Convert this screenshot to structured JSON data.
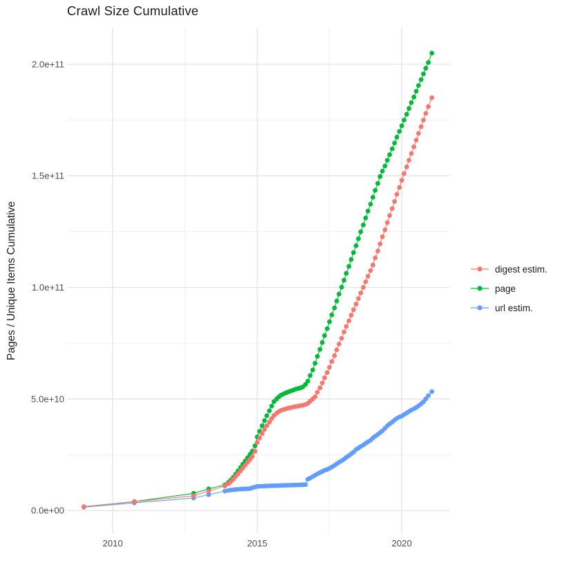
{
  "title": "Crawl Size Cumulative",
  "axes": {
    "y_title": "Pages / Unique Items Cumulative",
    "x_ticks": [
      {
        "label": "2010",
        "year": 2010
      },
      {
        "label": "2015",
        "year": 2015
      },
      {
        "label": "2020",
        "year": 2020
      }
    ],
    "x_minor": [
      2012.5,
      2017.5
    ],
    "y_ticks": [
      {
        "label": "0.0e+00",
        "value": 0
      },
      {
        "label": "5.0e+10",
        "value": 50
      },
      {
        "label": "1.0e+11",
        "value": 100
      },
      {
        "label": "1.5e+11",
        "value": 150
      },
      {
        "label": "2.0e+11",
        "value": 200
      }
    ],
    "y_minor": [
      25,
      75,
      125,
      175
    ]
  },
  "legend": {
    "items": [
      {
        "label": "digest estim.",
        "color": "#F8766D"
      },
      {
        "label": "page",
        "color": "#00BA38"
      },
      {
        "label": "url estim.",
        "color": "#619CFF"
      }
    ]
  },
  "chart_data": {
    "type": "scatter",
    "title": "Crawl Size Cumulative",
    "xlabel": "",
    "ylabel": "Pages / Unique Items Cumulative",
    "value_unit": "1e9 (billions); axis shows scientific notation",
    "xlim": [
      2008.4,
      2021.7
    ],
    "ylim_billions": [
      -10,
      216
    ],
    "grid": true,
    "legend_position": "right",
    "series": [
      {
        "name": "url estim.",
        "color": "#619CFF",
        "points": [
          [
            2009.0,
            1.5
          ],
          [
            2010.75,
            3.4
          ],
          [
            2012.8,
            5.6
          ],
          [
            2013.32,
            7.1
          ],
          [
            2013.88,
            8.7
          ],
          [
            2014.0,
            9.0
          ],
          [
            2014.08,
            9.2
          ],
          [
            2014.17,
            9.3
          ],
          [
            2014.25,
            9.4
          ],
          [
            2014.33,
            9.5
          ],
          [
            2014.42,
            9.6
          ],
          [
            2014.5,
            9.65
          ],
          [
            2014.58,
            9.7
          ],
          [
            2014.67,
            9.75
          ],
          [
            2014.75,
            9.8
          ],
          [
            2014.83,
            10.2
          ],
          [
            2014.92,
            10.5
          ],
          [
            2015.0,
            10.8
          ],
          [
            2015.08,
            10.85
          ],
          [
            2015.17,
            10.9
          ],
          [
            2015.25,
            10.95
          ],
          [
            2015.33,
            11.0
          ],
          [
            2015.42,
            11.05
          ],
          [
            2015.5,
            11.1
          ],
          [
            2015.58,
            11.13
          ],
          [
            2015.67,
            11.16
          ],
          [
            2015.75,
            11.2
          ],
          [
            2015.83,
            11.23
          ],
          [
            2015.92,
            11.26
          ],
          [
            2016.0,
            11.3
          ],
          [
            2016.08,
            11.33
          ],
          [
            2016.17,
            11.36
          ],
          [
            2016.25,
            11.4
          ],
          [
            2016.33,
            11.43
          ],
          [
            2016.42,
            11.46
          ],
          [
            2016.5,
            11.5
          ],
          [
            2016.58,
            11.55
          ],
          [
            2016.67,
            11.6
          ],
          [
            2016.75,
            14.0
          ],
          [
            2016.83,
            14.5
          ],
          [
            2016.92,
            15.2
          ],
          [
            2017.0,
            15.8
          ],
          [
            2017.08,
            16.4
          ],
          [
            2017.17,
            17.0
          ],
          [
            2017.25,
            17.5
          ],
          [
            2017.33,
            18.0
          ],
          [
            2017.42,
            18.4
          ],
          [
            2017.5,
            18.9
          ],
          [
            2017.58,
            19.5
          ],
          [
            2017.67,
            20.2
          ],
          [
            2017.75,
            20.9
          ],
          [
            2017.83,
            21.6
          ],
          [
            2017.92,
            22.3
          ],
          [
            2018.0,
            23.0
          ],
          [
            2018.08,
            23.8
          ],
          [
            2018.17,
            24.6
          ],
          [
            2018.25,
            25.4
          ],
          [
            2018.33,
            26.2
          ],
          [
            2018.42,
            27.3
          ],
          [
            2018.5,
            28.0
          ],
          [
            2018.58,
            28.7
          ],
          [
            2018.67,
            29.4
          ],
          [
            2018.75,
            30.1
          ],
          [
            2018.83,
            30.8
          ],
          [
            2018.92,
            31.5
          ],
          [
            2019.0,
            32.5
          ],
          [
            2019.08,
            33.3
          ],
          [
            2019.17,
            34.1
          ],
          [
            2019.25,
            34.9
          ],
          [
            2019.33,
            35.7
          ],
          [
            2019.42,
            36.9
          ],
          [
            2019.5,
            38.0
          ],
          [
            2019.58,
            38.8
          ],
          [
            2019.67,
            39.6
          ],
          [
            2019.75,
            40.5
          ],
          [
            2019.83,
            41.3
          ],
          [
            2019.92,
            41.9
          ],
          [
            2020.0,
            42.3
          ],
          [
            2020.08,
            43.0
          ],
          [
            2020.17,
            43.7
          ],
          [
            2020.25,
            44.4
          ],
          [
            2020.33,
            45.0
          ],
          [
            2020.42,
            45.6
          ],
          [
            2020.5,
            46.2
          ],
          [
            2020.58,
            46.9
          ],
          [
            2020.67,
            47.8
          ],
          [
            2020.75,
            48.7
          ],
          [
            2020.83,
            50.0
          ],
          [
            2020.92,
            51.5
          ],
          [
            2021.04,
            53.3
          ]
        ]
      },
      {
        "name": "page",
        "color": "#00BA38",
        "points": [
          [
            2009.0,
            1.7
          ],
          [
            2010.75,
            4.0
          ],
          [
            2012.8,
            7.7
          ],
          [
            2013.32,
            9.7
          ],
          [
            2013.88,
            11.5
          ],
          [
            2014.0,
            12.6
          ],
          [
            2014.08,
            13.6
          ],
          [
            2014.17,
            14.9
          ],
          [
            2014.25,
            16.3
          ],
          [
            2014.33,
            17.7
          ],
          [
            2014.42,
            19.2
          ],
          [
            2014.5,
            20.7
          ],
          [
            2014.58,
            22.2
          ],
          [
            2014.67,
            23.7
          ],
          [
            2014.75,
            25.2
          ],
          [
            2014.83,
            26.6
          ],
          [
            2014.92,
            29.0
          ],
          [
            2015.0,
            33.0
          ],
          [
            2015.08,
            35.5
          ],
          [
            2015.17,
            38.0
          ],
          [
            2015.25,
            40.3
          ],
          [
            2015.33,
            42.5
          ],
          [
            2015.42,
            44.7
          ],
          [
            2015.5,
            46.8
          ],
          [
            2015.58,
            48.8
          ],
          [
            2015.67,
            50.0
          ],
          [
            2015.75,
            51.0
          ],
          [
            2015.83,
            51.8
          ],
          [
            2015.92,
            52.3
          ],
          [
            2016.0,
            52.8
          ],
          [
            2016.08,
            53.2
          ],
          [
            2016.17,
            53.6
          ],
          [
            2016.25,
            54.0
          ],
          [
            2016.33,
            54.4
          ],
          [
            2016.42,
            54.7
          ],
          [
            2016.5,
            55.0
          ],
          [
            2016.58,
            55.4
          ],
          [
            2016.67,
            56.5
          ],
          [
            2016.75,
            58.0
          ],
          [
            2016.83,
            60.5
          ],
          [
            2016.92,
            63.0
          ],
          [
            2017.0,
            66.0
          ],
          [
            2017.08,
            69.1
          ],
          [
            2017.17,
            72.2
          ],
          [
            2017.25,
            75.3
          ],
          [
            2017.33,
            78.4
          ],
          [
            2017.42,
            81.5
          ],
          [
            2017.5,
            84.6
          ],
          [
            2017.58,
            87.7
          ],
          [
            2017.67,
            90.8
          ],
          [
            2017.75,
            93.9
          ],
          [
            2017.83,
            97.0
          ],
          [
            2017.92,
            100.1
          ],
          [
            2018.0,
            103.2
          ],
          [
            2018.08,
            106.3
          ],
          [
            2018.17,
            109.4
          ],
          [
            2018.25,
            112.5
          ],
          [
            2018.33,
            115.6
          ],
          [
            2018.42,
            118.7
          ],
          [
            2018.5,
            121.8
          ],
          [
            2018.58,
            124.9
          ],
          [
            2018.67,
            128.0
          ],
          [
            2018.75,
            131.1
          ],
          [
            2018.83,
            134.2
          ],
          [
            2018.92,
            137.3
          ],
          [
            2019.0,
            140.4
          ],
          [
            2019.08,
            143.5
          ],
          [
            2019.17,
            146.6
          ],
          [
            2019.25,
            149.7
          ],
          [
            2019.33,
            152.1
          ],
          [
            2019.42,
            154.4
          ],
          [
            2019.5,
            157.0
          ],
          [
            2019.58,
            159.5
          ],
          [
            2019.67,
            162.1
          ],
          [
            2019.75,
            164.7
          ],
          [
            2019.83,
            167.3
          ],
          [
            2019.92,
            169.9
          ],
          [
            2020.0,
            172.4
          ],
          [
            2020.08,
            175.0
          ],
          [
            2020.17,
            177.6
          ],
          [
            2020.25,
            180.2
          ],
          [
            2020.33,
            182.8
          ],
          [
            2020.42,
            185.3
          ],
          [
            2020.5,
            187.9
          ],
          [
            2020.58,
            190.5
          ],
          [
            2020.67,
            193.1
          ],
          [
            2020.75,
            195.7
          ],
          [
            2020.83,
            198.2
          ],
          [
            2020.92,
            200.8
          ],
          [
            2021.04,
            205.0
          ]
        ]
      },
      {
        "name": "digest estim.",
        "color": "#F8766D",
        "points": [
          [
            2009.0,
            1.7
          ],
          [
            2010.75,
            3.9
          ],
          [
            2012.8,
            6.6
          ],
          [
            2013.32,
            8.7
          ],
          [
            2013.88,
            11.0
          ],
          [
            2014.0,
            12.0
          ],
          [
            2014.08,
            12.9
          ],
          [
            2014.17,
            14.0
          ],
          [
            2014.25,
            15.2
          ],
          [
            2014.33,
            16.4
          ],
          [
            2014.42,
            17.7
          ],
          [
            2014.5,
            19.0
          ],
          [
            2014.58,
            20.3
          ],
          [
            2014.67,
            21.6
          ],
          [
            2014.75,
            22.9
          ],
          [
            2014.83,
            24.2
          ],
          [
            2014.92,
            26.5
          ],
          [
            2015.0,
            30.5
          ],
          [
            2015.08,
            32.5
          ],
          [
            2015.17,
            34.5
          ],
          [
            2015.25,
            36.3
          ],
          [
            2015.33,
            38.0
          ],
          [
            2015.42,
            39.6
          ],
          [
            2015.5,
            41.2
          ],
          [
            2015.58,
            42.6
          ],
          [
            2015.67,
            43.6
          ],
          [
            2015.75,
            44.4
          ],
          [
            2015.83,
            44.9
          ],
          [
            2015.92,
            45.3
          ],
          [
            2016.0,
            45.6
          ],
          [
            2016.08,
            45.9
          ],
          [
            2016.17,
            46.1
          ],
          [
            2016.25,
            46.4
          ],
          [
            2016.33,
            46.6
          ],
          [
            2016.42,
            46.8
          ],
          [
            2016.5,
            47.0
          ],
          [
            2016.58,
            47.2
          ],
          [
            2016.67,
            47.5
          ],
          [
            2016.75,
            48.0
          ],
          [
            2016.83,
            49.0
          ],
          [
            2016.92,
            50.0
          ],
          [
            2017.0,
            51.0
          ],
          [
            2017.08,
            53.0
          ],
          [
            2017.17,
            55.0
          ],
          [
            2017.25,
            57.2
          ],
          [
            2017.33,
            59.5
          ],
          [
            2017.42,
            61.8
          ],
          [
            2017.5,
            64.2
          ],
          [
            2017.58,
            66.8
          ],
          [
            2017.67,
            69.4
          ],
          [
            2017.75,
            72.0
          ],
          [
            2017.83,
            74.6
          ],
          [
            2017.92,
            77.2
          ],
          [
            2018.0,
            80.0
          ],
          [
            2018.08,
            82.5
          ],
          [
            2018.17,
            85.0
          ],
          [
            2018.25,
            87.5
          ],
          [
            2018.33,
            90.0
          ],
          [
            2018.42,
            92.5
          ],
          [
            2018.5,
            95.0
          ],
          [
            2018.58,
            97.5
          ],
          [
            2018.67,
            100.0
          ],
          [
            2018.75,
            102.5
          ],
          [
            2018.83,
            105.0
          ],
          [
            2018.92,
            107.5
          ],
          [
            2019.0,
            110.0
          ],
          [
            2019.08,
            113.2
          ],
          [
            2019.17,
            116.3
          ],
          [
            2019.25,
            119.5
          ],
          [
            2019.33,
            122.7
          ],
          [
            2019.42,
            125.8
          ],
          [
            2019.5,
            129.0
          ],
          [
            2019.58,
            132.2
          ],
          [
            2019.67,
            135.3
          ],
          [
            2019.75,
            138.5
          ],
          [
            2019.83,
            141.7
          ],
          [
            2019.92,
            144.8
          ],
          [
            2020.0,
            148.0
          ],
          [
            2020.08,
            151.0
          ],
          [
            2020.17,
            154.0
          ],
          [
            2020.25,
            157.0
          ],
          [
            2020.33,
            160.0
          ],
          [
            2020.42,
            163.0
          ],
          [
            2020.5,
            166.0
          ],
          [
            2020.58,
            169.0
          ],
          [
            2020.67,
            172.0
          ],
          [
            2020.75,
            175.0
          ],
          [
            2020.83,
            178.0
          ],
          [
            2020.92,
            181.0
          ],
          [
            2021.04,
            185.0
          ]
        ]
      }
    ]
  }
}
